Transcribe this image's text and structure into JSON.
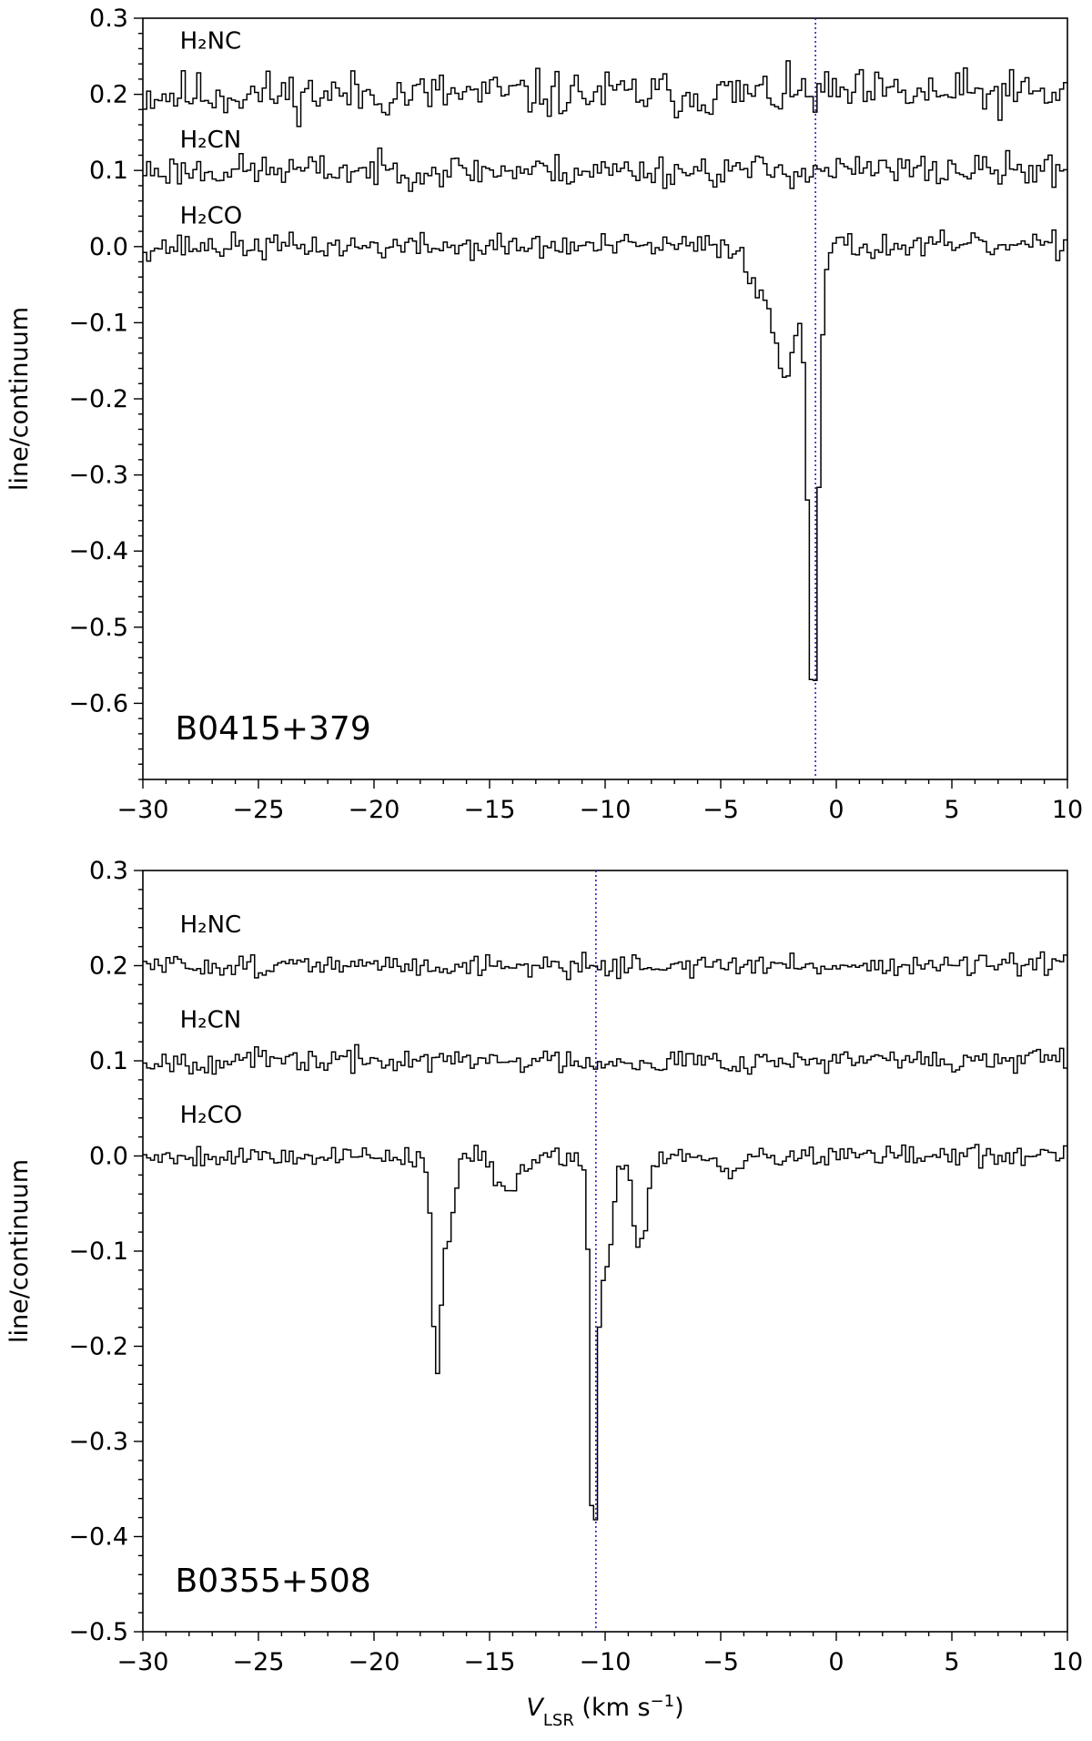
{
  "chart_data": [
    {
      "type": "line",
      "panel_label": "B0415+379",
      "xlabel": "",
      "ylabel": "line/continuum",
      "xlim": [
        -30,
        10
      ],
      "ylim": [
        -0.7,
        0.3
      ],
      "xticks": [
        -30,
        -25,
        -20,
        -15,
        -10,
        -5,
        0,
        5,
        10
      ],
      "xtick_labels": [
        "−30",
        "−25",
        "−20",
        "−15",
        "−10",
        "−5",
        "0",
        "5",
        "10"
      ],
      "yticks": [
        0.3,
        0.2,
        0.1,
        0.0,
        -0.1,
        -0.2,
        -0.3,
        -0.4,
        -0.5,
        -0.6
      ],
      "ytick_labels": [
        "0.3",
        "0.2",
        "0.1",
        "0.0",
        "−0.1",
        "−0.2",
        "−0.3",
        "−0.4",
        "−0.5",
        "−0.6"
      ],
      "grid": false,
      "legend": "none",
      "vline": {
        "x": -0.9,
        "color": "#2222cc",
        "style": "dotted"
      },
      "series": [
        {
          "name": "H₂NC",
          "label_x": -28.4,
          "label_y": 0.26,
          "offset": 0.2,
          "noise": 0.022,
          "seed": 11,
          "features": []
        },
        {
          "name": "H₂CN",
          "label_x": -28.4,
          "label_y": 0.13,
          "offset": 0.1,
          "noise": 0.015,
          "seed": 23,
          "features": []
        },
        {
          "name": "H₂CO",
          "label_x": -28.4,
          "label_y": 0.03,
          "offset": 0.0,
          "noise": 0.012,
          "seed": 37,
          "features": [
            {
              "center": -1.0,
              "depth": -0.59,
              "width": 0.45
            },
            {
              "center": -2.2,
              "depth": -0.17,
              "width": 0.9
            },
            {
              "center": -3.3,
              "depth": -0.06,
              "width": 0.8
            }
          ]
        }
      ],
      "line_color": "#000000"
    },
    {
      "type": "line",
      "panel_label": "B0355+508",
      "xlabel": "V_LSR (km s⁻¹)",
      "ylabel": "line/continuum",
      "xlim": [
        -30,
        10
      ],
      "ylim": [
        -0.5,
        0.3
      ],
      "xticks": [
        -30,
        -25,
        -20,
        -15,
        -10,
        -5,
        0,
        5,
        10
      ],
      "xtick_labels": [
        "−30",
        "−25",
        "−20",
        "−15",
        "−10",
        "−5",
        "0",
        "5",
        "10"
      ],
      "yticks": [
        0.3,
        0.2,
        0.1,
        0.0,
        -0.1,
        -0.2,
        -0.3,
        -0.4,
        -0.5
      ],
      "ytick_labels": [
        "0.3",
        "0.2",
        "0.1",
        "0.0",
        "−0.1",
        "−0.2",
        "−0.3",
        "−0.4",
        "−0.5"
      ],
      "grid": false,
      "legend": "none",
      "vline": {
        "x": -10.4,
        "color": "#2222cc",
        "style": "dotted"
      },
      "series": [
        {
          "name": "H₂NC",
          "label_x": -28.4,
          "label_y": 0.235,
          "offset": 0.2,
          "noise": 0.008,
          "seed": 51,
          "features": []
        },
        {
          "name": "H₂CN",
          "label_x": -28.4,
          "label_y": 0.135,
          "offset": 0.1,
          "noise": 0.009,
          "seed": 67,
          "features": []
        },
        {
          "name": "H₂CO",
          "label_x": -28.4,
          "label_y": 0.035,
          "offset": 0.0,
          "noise": 0.008,
          "seed": 79,
          "features": [
            {
              "center": -17.3,
              "depth": -0.23,
              "width": 0.35
            },
            {
              "center": -16.8,
              "depth": -0.09,
              "width": 0.5
            },
            {
              "center": -14.3,
              "depth": -0.035,
              "width": 1.0
            },
            {
              "center": -10.5,
              "depth": -0.4,
              "width": 0.3
            },
            {
              "center": -10.0,
              "depth": -0.12,
              "width": 0.6
            },
            {
              "center": -8.5,
              "depth": -0.1,
              "width": 0.55
            },
            {
              "center": -4.7,
              "depth": -0.02,
              "width": 1.0
            }
          ]
        }
      ],
      "line_color": "#000000"
    }
  ]
}
